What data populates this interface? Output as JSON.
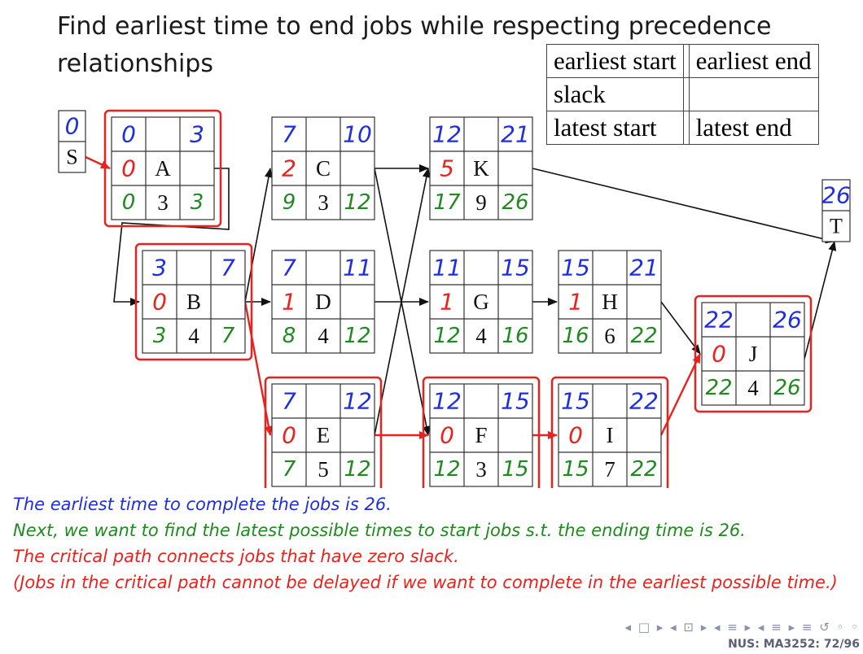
{
  "title": "Find earliest time to end jobs while respecting precedence relationships",
  "legend": {
    "earliest_start": "earliest start",
    "earliest_end": "earliest end",
    "slack": "slack",
    "latest_start": "latest start",
    "latest_end": "latest end"
  },
  "colors": {
    "early_times": "#1f2fe0",
    "slack": "#e8231f",
    "late_times": "#1f8a1f",
    "critical_outline": "#e8231f",
    "ink": "#111111"
  },
  "source_node": {
    "name": "S",
    "earliest": "0"
  },
  "sink_node": {
    "name": "T",
    "earliest": "26"
  },
  "jobs": [
    {
      "name": "A",
      "duration": "3",
      "es": "0",
      "ef": "3",
      "slack": "0",
      "ls": "0",
      "lf": "3",
      "critical": true
    },
    {
      "name": "B",
      "duration": "4",
      "es": "3",
      "ef": "7",
      "slack": "0",
      "ls": "3",
      "lf": "7",
      "critical": true
    },
    {
      "name": "C",
      "duration": "3",
      "es": "7",
      "ef": "10",
      "slack": "2",
      "ls": "9",
      "lf": "12",
      "critical": false
    },
    {
      "name": "D",
      "duration": "4",
      "es": "7",
      "ef": "11",
      "slack": "1",
      "ls": "8",
      "lf": "12",
      "critical": false
    },
    {
      "name": "E",
      "duration": "5",
      "es": "7",
      "ef": "12",
      "slack": "0",
      "ls": "7",
      "lf": "12",
      "critical": true
    },
    {
      "name": "K",
      "duration": "9",
      "es": "12",
      "ef": "21",
      "slack": "5",
      "ls": "17",
      "lf": "26",
      "critical": false
    },
    {
      "name": "G",
      "duration": "4",
      "es": "11",
      "ef": "15",
      "slack": "1",
      "ls": "12",
      "lf": "16",
      "critical": false
    },
    {
      "name": "F",
      "duration": "3",
      "es": "12",
      "ef": "15",
      "slack": "0",
      "ls": "12",
      "lf": "15",
      "critical": true
    },
    {
      "name": "H",
      "duration": "6",
      "es": "15",
      "ef": "21",
      "slack": "1",
      "ls": "16",
      "lf": "22",
      "critical": false
    },
    {
      "name": "I",
      "duration": "7",
      "es": "15",
      "ef": "22",
      "slack": "0",
      "ls": "15",
      "lf": "22",
      "critical": true
    },
    {
      "name": "J",
      "duration": "4",
      "es": "22",
      "ef": "26",
      "slack": "0",
      "ls": "22",
      "lf": "26",
      "critical": true
    }
  ],
  "edges": [
    [
      "S",
      "A"
    ],
    [
      "A",
      "B"
    ],
    [
      "B",
      "C"
    ],
    [
      "B",
      "D"
    ],
    [
      "B",
      "E"
    ],
    [
      "C",
      "K"
    ],
    [
      "C",
      "F"
    ],
    [
      "D",
      "G"
    ],
    [
      "E",
      "K"
    ],
    [
      "E",
      "F"
    ],
    [
      "G",
      "H"
    ],
    [
      "F",
      "I"
    ],
    [
      "H",
      "J"
    ],
    [
      "I",
      "J"
    ],
    [
      "K",
      "T"
    ],
    [
      "J",
      "T"
    ]
  ],
  "notes": [
    {
      "text": "The earliest time to complete the jobs is 26.",
      "color": "#1f2fe0"
    },
    {
      "text": "Next, we want to find the latest possible times to start jobs s.t. the ending time is 26.",
      "color": "#1f8a1f"
    },
    {
      "text": "The critical path connects jobs that have zero slack.",
      "color": "#e8231f"
    },
    {
      "text": "(Jobs in the critical path cannot be delayed if we want to complete in the earliest possible time.)",
      "color": "#e8231f"
    }
  ],
  "footer": {
    "course": "NUS: MA3252:",
    "page": "72/96",
    "nav_symbols": "◂ □ ▸ ◂ ⊡ ▸ ◂ ≡ ▸ ◂ ≡ ▸ ≡ ↺ ◦ ◦"
  }
}
